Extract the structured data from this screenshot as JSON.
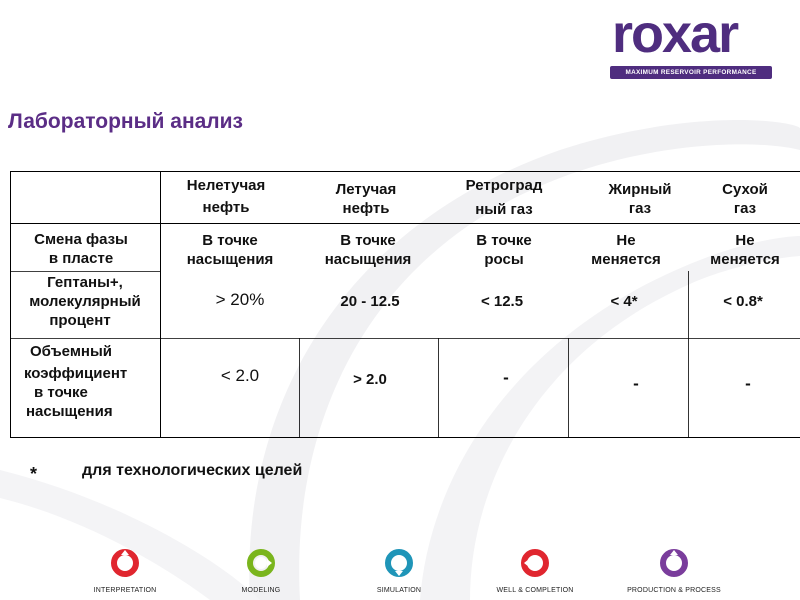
{
  "brand": {
    "logo_text": "roxar",
    "tagline": "MAXIMUM RESERVOIR PERFORMANCE",
    "color": "#4f2d7f"
  },
  "title": "Лабораторный анализ",
  "table": {
    "columns": [
      {
        "line1": "Нелетучая",
        "line2": "нефть"
      },
      {
        "line1": "Летучая",
        "line2": "нефть"
      },
      {
        "line1": "Ретроград",
        "line2": "ный газ"
      },
      {
        "line1": "Жирный",
        "line2": "газ"
      },
      {
        "line1": "Сухой",
        "line2": "газ"
      }
    ],
    "rows": [
      {
        "label": [
          "Смена фазы",
          "в пласте"
        ],
        "cells": [
          [
            "В точке",
            "насыщения"
          ],
          [
            "В точке",
            "насыщения"
          ],
          [
            "В точке",
            "росы"
          ],
          [
            "Не",
            "меняется"
          ],
          [
            "Не",
            "меняется"
          ]
        ]
      },
      {
        "label": [
          "Гептаны+,",
          "молекулярный",
          "процент"
        ],
        "cells": [
          "> 20%",
          "20 - 12.5",
          "< 12.5",
          "< 4*",
          "< 0.8*"
        ]
      },
      {
        "label": [
          "Объемный",
          "коэффициент",
          "в точке",
          "насыщения"
        ],
        "cells": [
          "< 2.0",
          "> 2.0",
          "-",
          "-",
          "-"
        ]
      }
    ]
  },
  "footnote": {
    "mark": "*",
    "text": "для технологических целей"
  },
  "footer": [
    {
      "label": "INTERPRETATION",
      "icon": "interpretation-icon",
      "color": "#e0262f"
    },
    {
      "label": "MODELING",
      "icon": "modeling-icon",
      "color": "#7ab51d"
    },
    {
      "label": "SIMULATION",
      "icon": "simulation-icon",
      "color": "#1f95b8"
    },
    {
      "label": "WELL & COMPLETION",
      "icon": "well-completion-icon",
      "color": "#e0262f"
    },
    {
      "label": "PRODUCTION & PROCESS",
      "icon": "production-process-icon",
      "color": "#7a3d9c"
    }
  ]
}
